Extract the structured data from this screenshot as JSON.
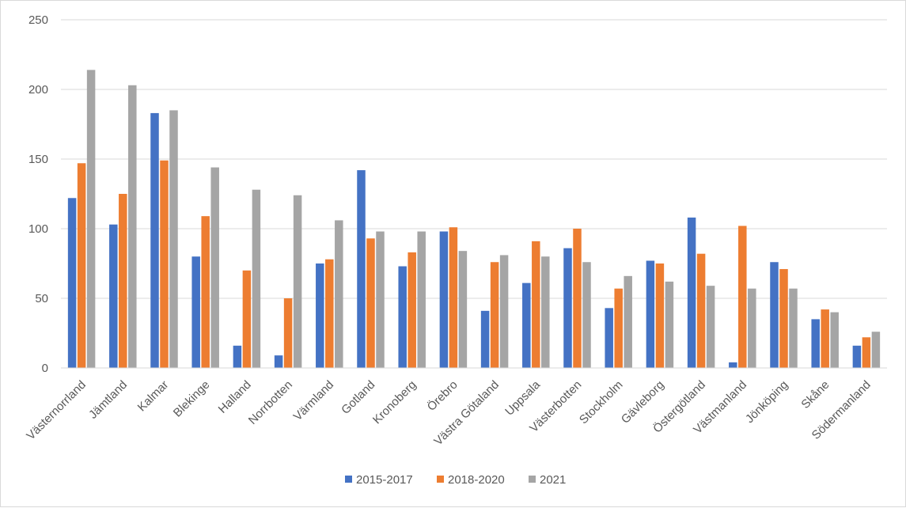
{
  "chart_data": {
    "type": "bar",
    "title": "",
    "xlabel": "",
    "ylabel": "",
    "ylim": [
      0,
      250
    ],
    "yticks": [
      0,
      50,
      100,
      150,
      200,
      250
    ],
    "grid": true,
    "legend_position": "bottom",
    "categories": [
      "Västernorrland",
      "Jämtland",
      "Kalmar",
      "Blekinge",
      "Halland",
      "Norrbotten",
      "Värmland",
      "Gotland",
      "Kronoberg",
      "Örebro",
      "Västra Götaland",
      "Uppsala",
      "Västerbotten",
      "Stockholm",
      "Gävleborg",
      "Östergötland",
      "Västmanland",
      "Jönköping",
      "Skåne",
      "Södermanland"
    ],
    "series": [
      {
        "name": "2015-2017",
        "color": "#4472C4",
        "values": [
          122,
          103,
          183,
          80,
          16,
          9,
          75,
          142,
          73,
          98,
          41,
          61,
          86,
          43,
          77,
          108,
          4,
          76,
          35,
          16
        ]
      },
      {
        "name": "2018-2020",
        "color": "#ED7D31",
        "values": [
          147,
          125,
          149,
          109,
          70,
          50,
          78,
          93,
          83,
          101,
          76,
          91,
          100,
          57,
          75,
          82,
          102,
          71,
          42,
          22
        ]
      },
      {
        "name": "2021",
        "color": "#A5A5A5",
        "values": [
          214,
          203,
          185,
          144,
          128,
          124,
          106,
          98,
          98,
          84,
          81,
          80,
          76,
          66,
          62,
          59,
          57,
          57,
          40,
          26
        ]
      }
    ]
  }
}
